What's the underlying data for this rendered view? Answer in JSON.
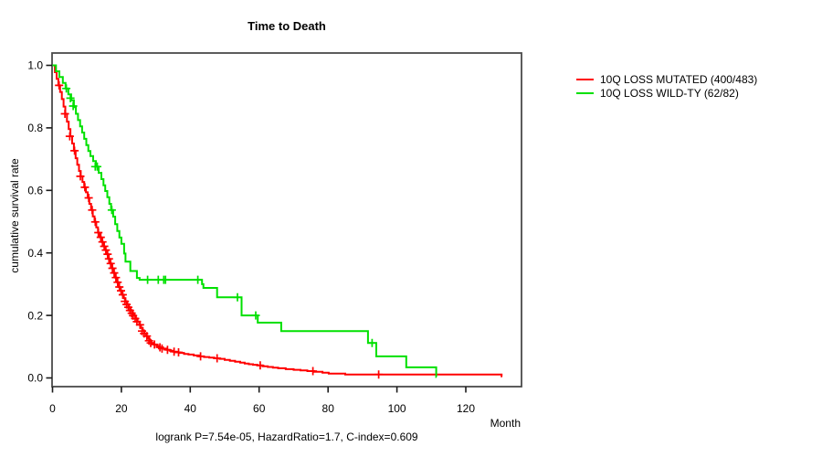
{
  "title": "Time to Death",
  "y_axis": {
    "label": "cumulative survival rate",
    "tick_labels": [
      "1.0",
      "0.8",
      "0.6",
      "0.4",
      "0.2",
      "0.0"
    ],
    "tick_values": [
      1.0,
      0.8,
      0.6,
      0.4,
      0.2,
      0.0
    ]
  },
  "x_axis": {
    "label": "Month",
    "tick_labels": [
      "0",
      "20",
      "40",
      "60",
      "80",
      "100",
      "120"
    ],
    "tick_values": [
      0,
      20,
      40,
      60,
      80,
      100,
      120
    ]
  },
  "footer": "logrank P=7.54e-05, HazardRatio=1.7, C-index=0.609",
  "legend": {
    "entries": [
      {
        "label": "10Q LOSS MUTATED (400/483)",
        "color": "#FF0000"
      },
      {
        "label": "10Q LOSS WILD-TY (62/82)",
        "color": "#00E000"
      }
    ]
  },
  "chart_data": {
    "type": "line",
    "subtype": "kaplan-meier-step",
    "title": "Time to Death",
    "xlabel": "Month",
    "ylabel": "cumulative survival rate",
    "xlim": [
      0,
      136
    ],
    "ylim": [
      0.0,
      1.0
    ],
    "x_ticks": [
      0,
      20,
      40,
      60,
      80,
      100,
      120
    ],
    "y_ticks": [
      0.0,
      0.2,
      0.4,
      0.6,
      0.8,
      1.0
    ],
    "grid": false,
    "legend_position": "top-right-outside",
    "annotation": "logrank P=7.54e-05, HazardRatio=1.7, C-index=0.609",
    "series": [
      {
        "name": "10Q LOSS MUTATED (400/483)",
        "color": "#FF0000",
        "events": 400,
        "total": 483,
        "end_time": 130.6,
        "steps": [
          [
            0,
            1.0
          ],
          [
            0.7,
            0.978
          ],
          [
            1.2,
            0.957
          ],
          [
            1.7,
            0.936
          ],
          [
            2.2,
            0.915
          ],
          [
            2.7,
            0.892
          ],
          [
            3.2,
            0.868
          ],
          [
            3.7,
            0.845
          ],
          [
            4.2,
            0.82
          ],
          [
            4.7,
            0.796
          ],
          [
            5.2,
            0.773
          ],
          [
            5.7,
            0.75
          ],
          [
            6.2,
            0.727
          ],
          [
            6.7,
            0.703
          ],
          [
            7.2,
            0.682
          ],
          [
            7.7,
            0.662
          ],
          [
            8.2,
            0.645
          ],
          [
            8.7,
            0.627
          ],
          [
            9.2,
            0.61
          ],
          [
            9.7,
            0.594
          ],
          [
            10.2,
            0.576
          ],
          [
            10.7,
            0.557
          ],
          [
            11.2,
            0.537
          ],
          [
            11.7,
            0.517
          ],
          [
            12.2,
            0.499
          ],
          [
            12.7,
            0.482
          ],
          [
            13.2,
            0.465
          ],
          [
            13.7,
            0.45
          ],
          [
            14.2,
            0.435
          ],
          [
            14.7,
            0.421
          ],
          [
            15.2,
            0.409
          ],
          [
            15.7,
            0.396
          ],
          [
            16.2,
            0.381
          ],
          [
            16.7,
            0.366
          ],
          [
            17.2,
            0.351
          ],
          [
            17.7,
            0.336
          ],
          [
            18.2,
            0.321
          ],
          [
            18.7,
            0.306
          ],
          [
            19.2,
            0.291
          ],
          [
            19.7,
            0.279
          ],
          [
            20.2,
            0.266
          ],
          [
            20.7,
            0.255
          ],
          [
            21.2,
            0.245
          ],
          [
            21.7,
            0.235
          ],
          [
            22.2,
            0.226
          ],
          [
            22.7,
            0.216
          ],
          [
            23.2,
            0.207
          ],
          [
            23.7,
            0.199
          ],
          [
            24.2,
            0.19
          ],
          [
            24.7,
            0.18
          ],
          [
            25.2,
            0.17
          ],
          [
            25.7,
            0.16
          ],
          [
            26.2,
            0.15
          ],
          [
            26.7,
            0.142
          ],
          [
            27.2,
            0.134
          ],
          [
            27.7,
            0.126
          ],
          [
            28.2,
            0.119
          ],
          [
            28.7,
            0.112
          ],
          [
            29.4,
            0.107
          ],
          [
            30.2,
            0.102
          ],
          [
            31,
            0.098
          ],
          [
            32,
            0.094
          ],
          [
            33,
            0.09
          ],
          [
            34,
            0.087
          ],
          [
            35,
            0.084
          ],
          [
            36,
            0.082
          ],
          [
            37,
            0.08
          ],
          [
            38.2,
            0.077
          ],
          [
            39.5,
            0.075
          ],
          [
            41,
            0.072
          ],
          [
            42.5,
            0.069
          ],
          [
            44,
            0.067
          ],
          [
            45.5,
            0.065
          ],
          [
            47,
            0.063
          ],
          [
            48.5,
            0.061
          ],
          [
            50,
            0.058
          ],
          [
            51.5,
            0.055
          ],
          [
            53,
            0.052
          ],
          [
            54.5,
            0.049
          ],
          [
            55.8,
            0.046
          ],
          [
            57,
            0.044
          ],
          [
            58.2,
            0.042
          ],
          [
            59.5,
            0.04
          ],
          [
            61,
            0.037
          ],
          [
            62.5,
            0.035
          ],
          [
            64,
            0.033
          ],
          [
            65.5,
            0.031
          ],
          [
            67.7,
            0.028
          ],
          [
            70,
            0.026
          ],
          [
            72,
            0.024
          ],
          [
            74,
            0.022
          ],
          [
            76,
            0.02
          ],
          [
            78.4,
            0.017
          ],
          [
            80.2,
            0.014
          ],
          [
            85,
            0.011
          ],
          [
            130,
            0.011
          ],
          [
            130.4,
            0.005
          ]
        ],
        "censors": [
          [
            1.9,
            0.936
          ],
          [
            3.6,
            0.845
          ],
          [
            5.0,
            0.773
          ],
          [
            6.4,
            0.727
          ],
          [
            8.1,
            0.645
          ],
          [
            9.4,
            0.61
          ],
          [
            10.5,
            0.576
          ],
          [
            11.5,
            0.537
          ],
          [
            12.4,
            0.499
          ],
          [
            13.3,
            0.465
          ],
          [
            14.0,
            0.45
          ],
          [
            14.5,
            0.435
          ],
          [
            15.0,
            0.421
          ],
          [
            15.5,
            0.409
          ],
          [
            16.0,
            0.396
          ],
          [
            16.4,
            0.381
          ],
          [
            16.9,
            0.366
          ],
          [
            17.4,
            0.351
          ],
          [
            17.9,
            0.336
          ],
          [
            18.4,
            0.321
          ],
          [
            18.9,
            0.306
          ],
          [
            19.4,
            0.291
          ],
          [
            19.9,
            0.279
          ],
          [
            20.4,
            0.266
          ],
          [
            21.0,
            0.245
          ],
          [
            21.5,
            0.235
          ],
          [
            22.0,
            0.226
          ],
          [
            22.5,
            0.216
          ],
          [
            23.0,
            0.207
          ],
          [
            23.4,
            0.199
          ],
          [
            24.0,
            0.19
          ],
          [
            24.5,
            0.18
          ],
          [
            25.4,
            0.17
          ],
          [
            26.0,
            0.15
          ],
          [
            26.6,
            0.142
          ],
          [
            27.4,
            0.134
          ],
          [
            28.0,
            0.119
          ],
          [
            28.5,
            0.112
          ],
          [
            29.6,
            0.107
          ],
          [
            31.2,
            0.098
          ],
          [
            31.8,
            0.094
          ],
          [
            33.4,
            0.09
          ],
          [
            35.3,
            0.084
          ],
          [
            36.6,
            0.082
          ],
          [
            43.0,
            0.069
          ],
          [
            47.8,
            0.063
          ],
          [
            60.3,
            0.04
          ],
          [
            75.6,
            0.022
          ],
          [
            94.7,
            0.011
          ]
        ]
      },
      {
        "name": "10Q LOSS WILD-TY (62/82)",
        "color": "#00E000",
        "events": 62,
        "total": 82,
        "end_time": 111.5,
        "steps": [
          [
            0,
            1.0
          ],
          [
            1.0,
            0.981
          ],
          [
            2.0,
            0.963
          ],
          [
            3.0,
            0.944
          ],
          [
            3.8,
            0.926
          ],
          [
            4.6,
            0.907
          ],
          [
            5.4,
            0.888
          ],
          [
            6.2,
            0.866
          ],
          [
            6.8,
            0.845
          ],
          [
            7.4,
            0.825
          ],
          [
            8.0,
            0.805
          ],
          [
            8.6,
            0.785
          ],
          [
            9.2,
            0.765
          ],
          [
            9.8,
            0.745
          ],
          [
            10.4,
            0.726
          ],
          [
            11.0,
            0.71
          ],
          [
            11.8,
            0.694
          ],
          [
            12.6,
            0.676
          ],
          [
            13.4,
            0.656
          ],
          [
            14.2,
            0.636
          ],
          [
            14.8,
            0.616
          ],
          [
            15.3,
            0.598
          ],
          [
            15.9,
            0.578
          ],
          [
            16.5,
            0.557
          ],
          [
            17.0,
            0.537
          ],
          [
            17.6,
            0.516
          ],
          [
            18.2,
            0.492
          ],
          [
            18.8,
            0.47
          ],
          [
            19.4,
            0.449
          ],
          [
            20.0,
            0.429
          ],
          [
            20.8,
            0.398
          ],
          [
            21.2,
            0.372
          ],
          [
            22.6,
            0.342
          ],
          [
            24.5,
            0.32
          ],
          [
            25.3,
            0.314
          ],
          [
            43.4,
            0.3
          ],
          [
            43.8,
            0.288
          ],
          [
            47.8,
            0.258
          ],
          [
            54.9,
            0.2
          ],
          [
            59.6,
            0.177
          ],
          [
            66.4,
            0.15
          ],
          [
            91.6,
            0.112
          ],
          [
            94.0,
            0.069
          ],
          [
            102.7,
            0.034
          ],
          [
            111.4,
            0.003
          ]
        ],
        "censors": [
          [
            4.0,
            0.926
          ],
          [
            5.2,
            0.895
          ],
          [
            6.0,
            0.87
          ],
          [
            12.4,
            0.676
          ],
          [
            13.0,
            0.676
          ],
          [
            17.2,
            0.537
          ],
          [
            27.6,
            0.314
          ],
          [
            30.7,
            0.314
          ],
          [
            32.3,
            0.314
          ],
          [
            32.8,
            0.314
          ],
          [
            42.2,
            0.314
          ],
          [
            53.7,
            0.258
          ],
          [
            59.0,
            0.2
          ],
          [
            92.8,
            0.112
          ]
        ]
      }
    ]
  }
}
